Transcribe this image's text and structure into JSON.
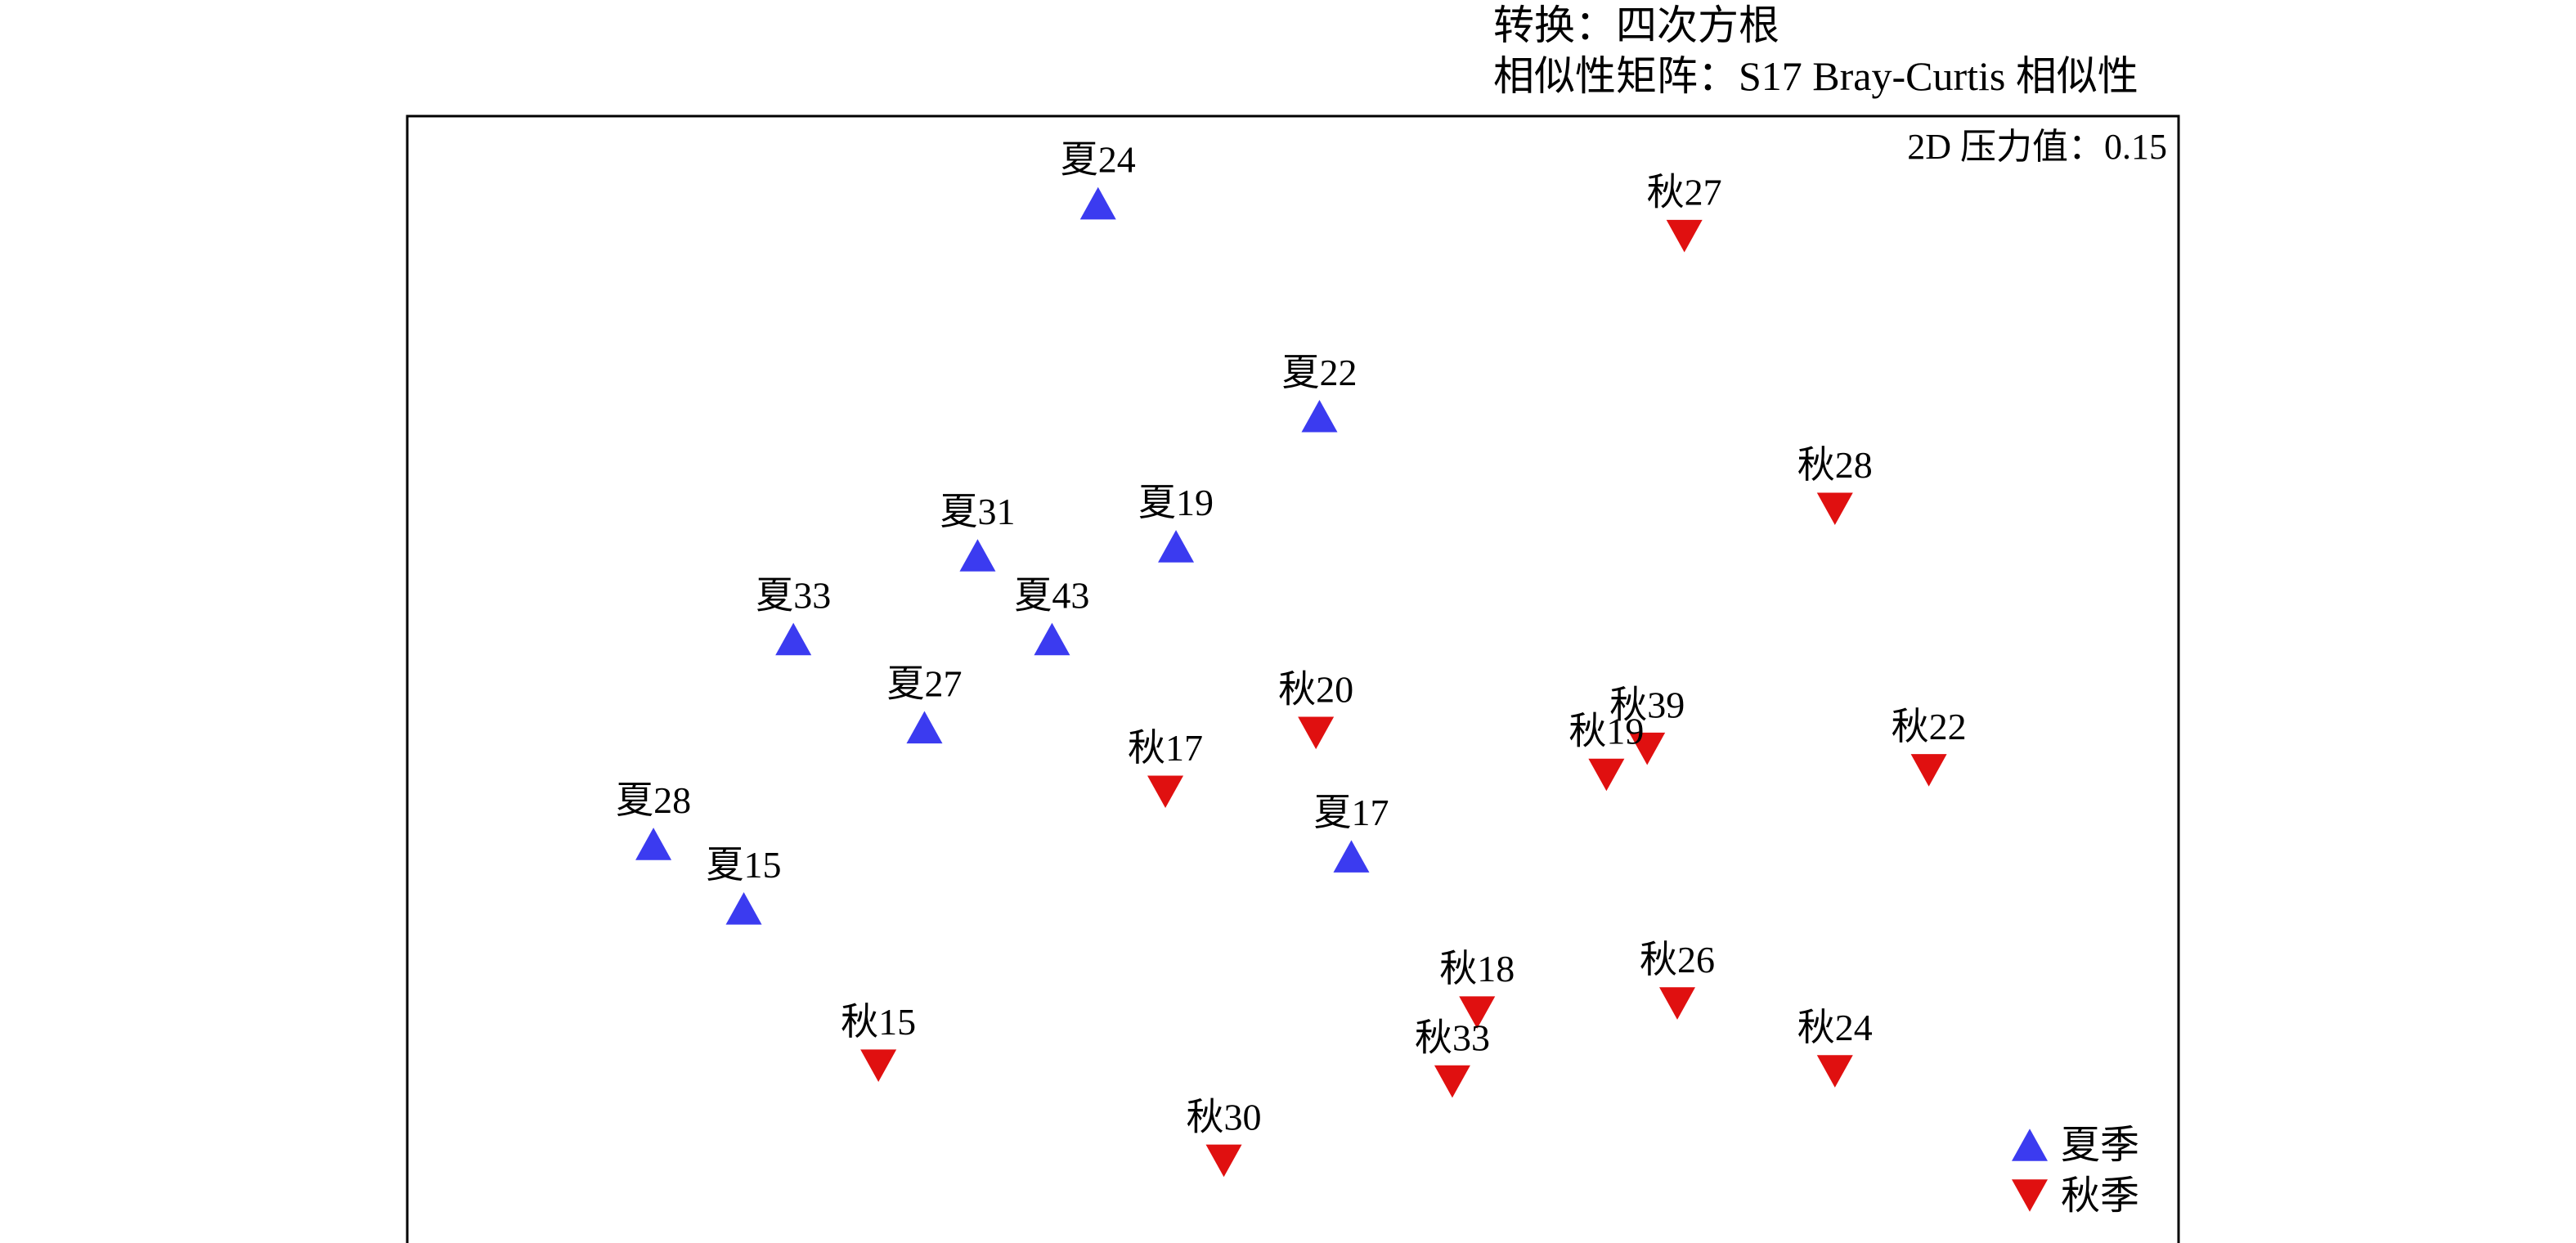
{
  "header": {
    "transform": "转换：四次方根",
    "resemblance": "相似性矩阵：S17 Bray-Curtis 相似性"
  },
  "chart_data": {
    "type": "scatter",
    "title": "",
    "xlabel": "",
    "ylabel": "",
    "stress_label": "2D 压力值：0.15",
    "xlim": [
      0,
      100
    ],
    "ylim": [
      0,
      100
    ],
    "grid": false,
    "legend_position": "bottom-right",
    "series": [
      {
        "name": "夏季",
        "marker": "triangle-up",
        "color": "#3b3bf0",
        "points": [
          {
            "label": "夏24",
            "x": 39.0,
            "y": 92.3
          },
          {
            "label": "夏22",
            "x": 51.5,
            "y": 73.5
          },
          {
            "label": "夏19",
            "x": 43.4,
            "y": 62.0
          },
          {
            "label": "夏31",
            "x": 32.2,
            "y": 61.2
          },
          {
            "label": "夏43",
            "x": 36.4,
            "y": 53.8
          },
          {
            "label": "夏33",
            "x": 21.8,
            "y": 53.8
          },
          {
            "label": "夏27",
            "x": 29.2,
            "y": 46.0
          },
          {
            "label": "夏17",
            "x": 53.3,
            "y": 34.6
          },
          {
            "label": "夏28",
            "x": 13.9,
            "y": 35.7
          },
          {
            "label": "夏15",
            "x": 19.0,
            "y": 30.0
          }
        ]
      },
      {
        "name": "秋季",
        "marker": "triangle-down",
        "color": "#e01010",
        "points": [
          {
            "label": "秋27",
            "x": 72.1,
            "y": 89.4
          },
          {
            "label": "秋28",
            "x": 80.6,
            "y": 65.3
          },
          {
            "label": "秋20",
            "x": 51.3,
            "y": 45.5
          },
          {
            "label": "秋39",
            "x": 70.0,
            "y": 44.1
          },
          {
            "label": "秋19",
            "x": 67.7,
            "y": 41.8
          },
          {
            "label": "秋22",
            "x": 85.9,
            "y": 42.2
          },
          {
            "label": "秋17",
            "x": 42.8,
            "y": 40.3
          },
          {
            "label": "秋18",
            "x": 60.4,
            "y": 20.8
          },
          {
            "label": "秋26",
            "x": 71.7,
            "y": 21.6
          },
          {
            "label": "秋24",
            "x": 80.6,
            "y": 15.6
          },
          {
            "label": "秋33",
            "x": 59.0,
            "y": 14.7
          },
          {
            "label": "秋15",
            "x": 26.6,
            "y": 16.1
          },
          {
            "label": "秋30",
            "x": 46.1,
            "y": 7.7
          }
        ]
      }
    ]
  }
}
